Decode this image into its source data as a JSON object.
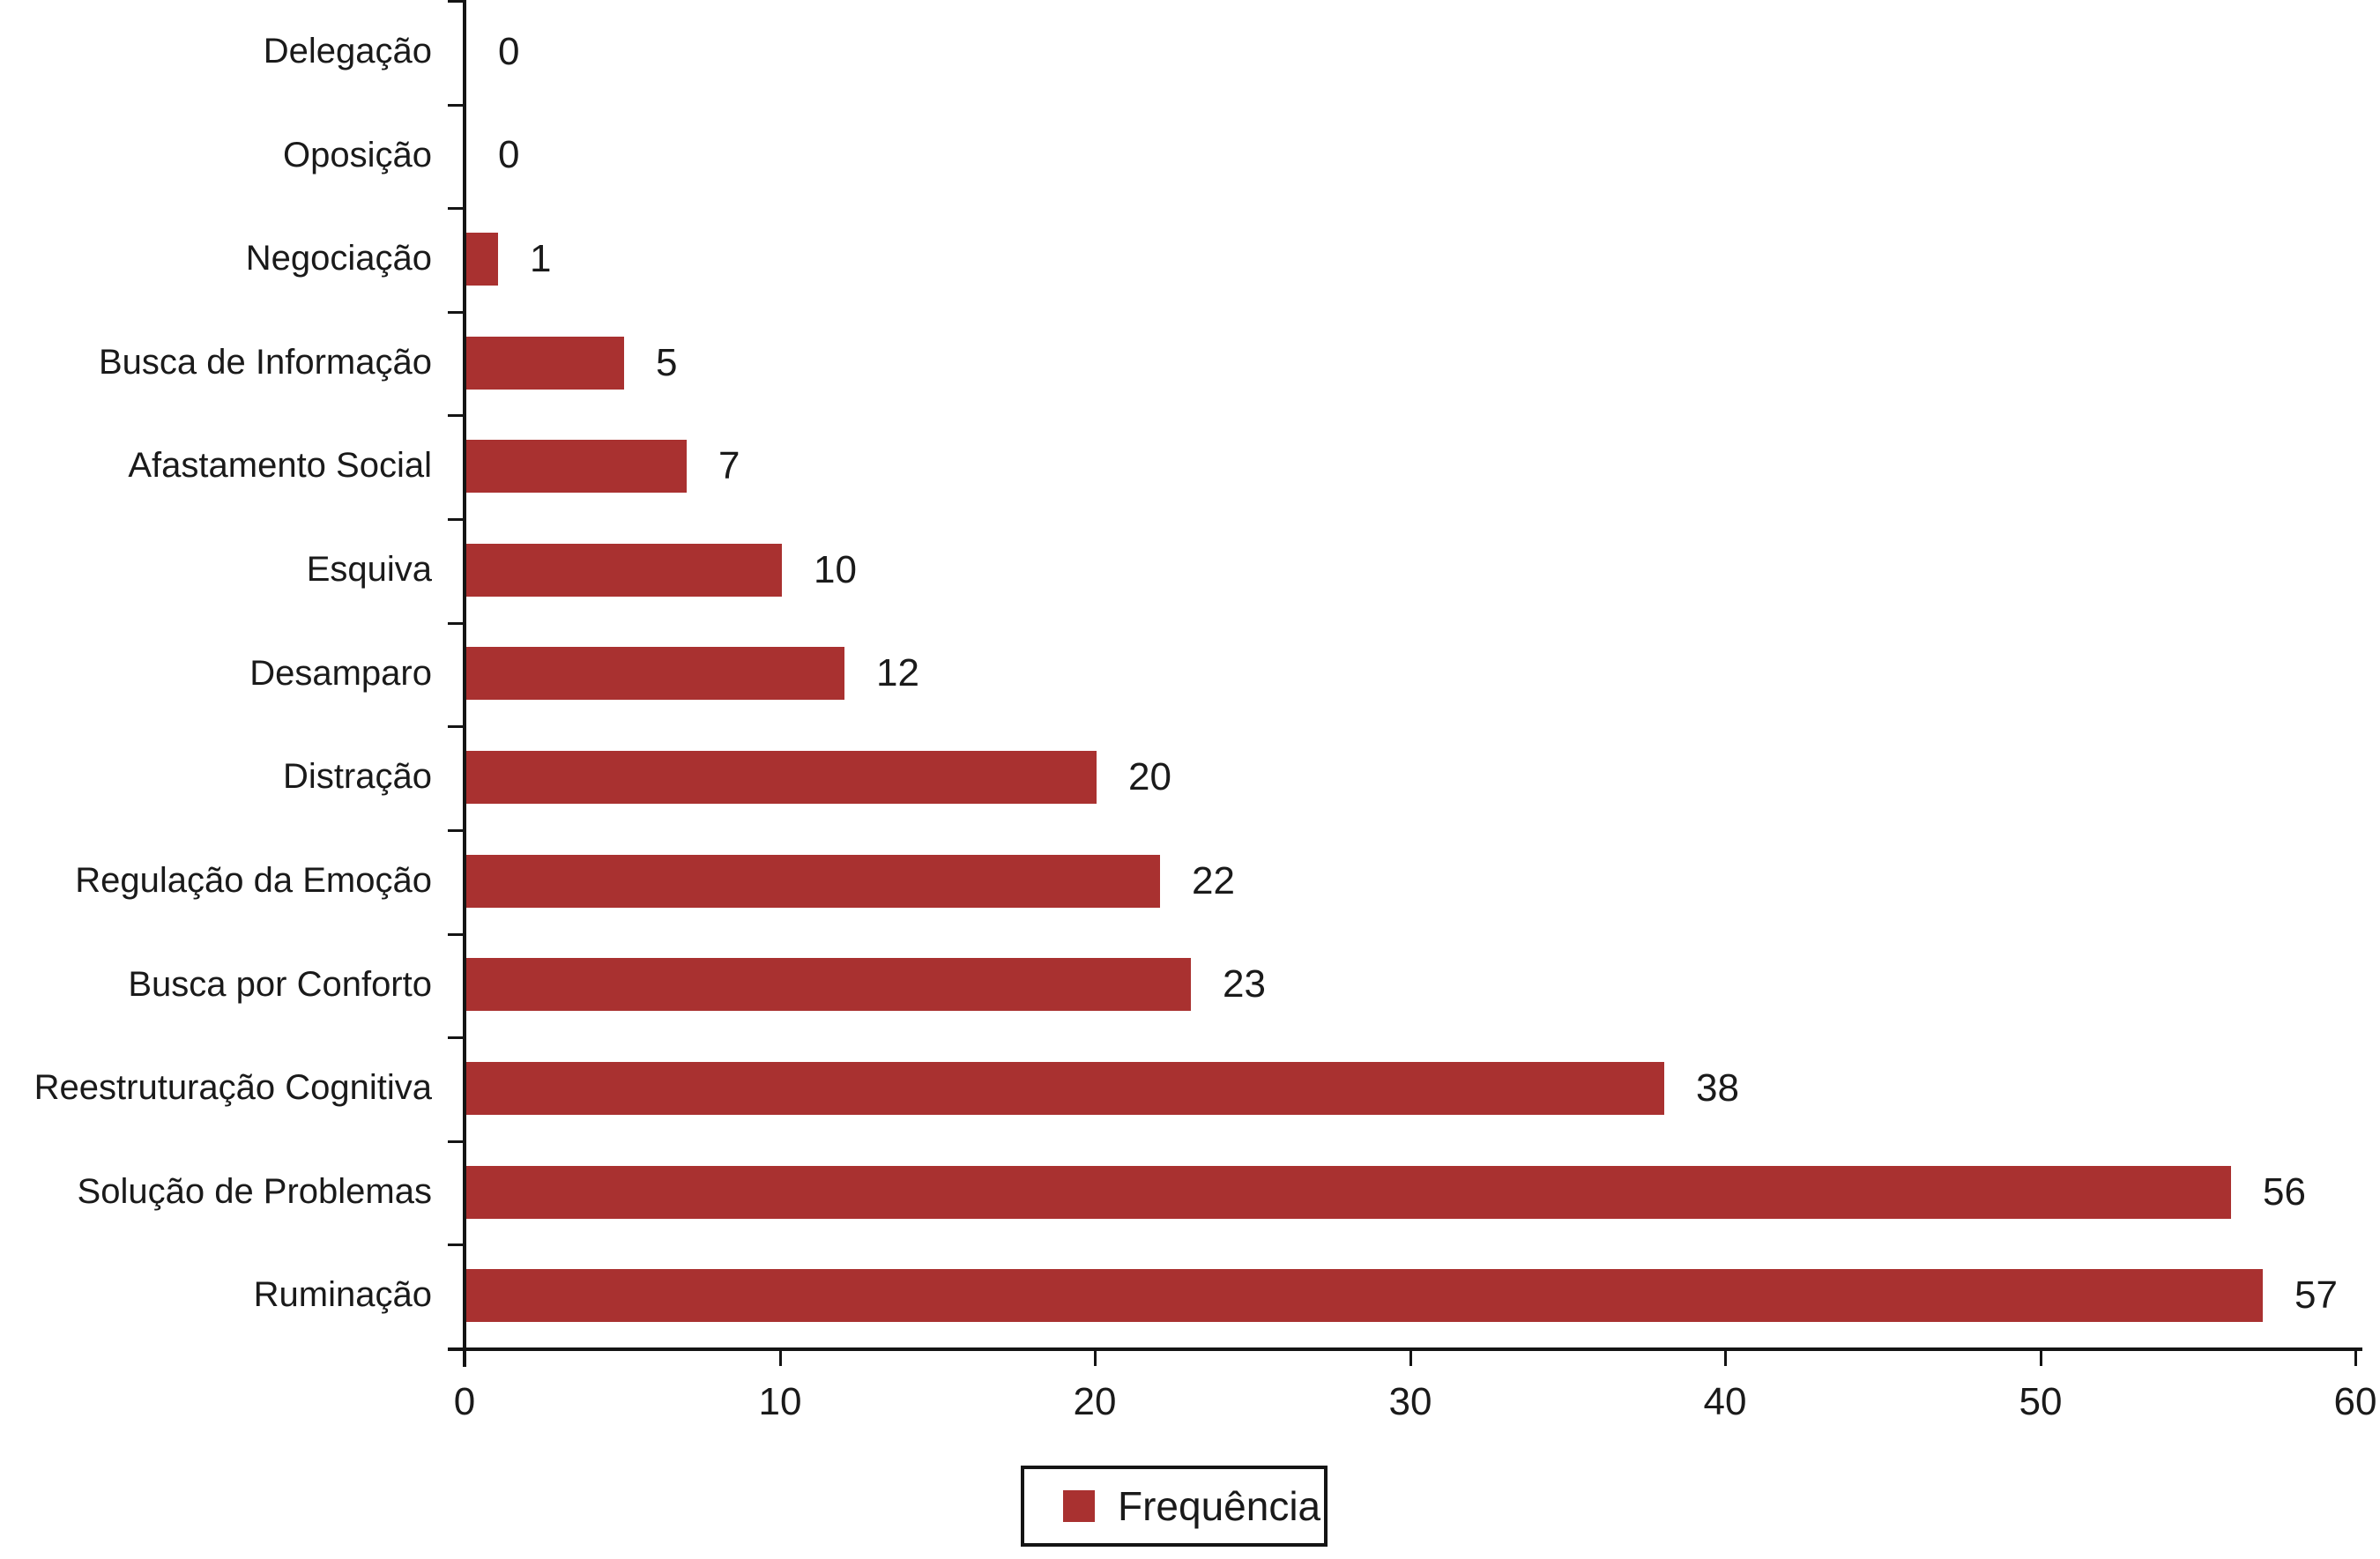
{
  "chart_data": {
    "type": "bar",
    "orientation": "horizontal",
    "title": "",
    "categories": [
      "Delegação",
      "Oposição",
      "Negociação",
      "Busca de Informação",
      "Afastamento Social",
      "Esquiva",
      "Desamparo",
      "Distração",
      "Regulação da Emoção",
      "Busca por Conforto",
      "Reestruturação Cognitiva",
      "Solução de Problemas",
      "Ruminação"
    ],
    "series": [
      {
        "name": "Frequência",
        "values": [
          0,
          0,
          1,
          5,
          7,
          10,
          12,
          20,
          22,
          23,
          38,
          56,
          57
        ]
      }
    ],
    "value_labels": [
      "0",
      "0",
      "1",
      "5",
      "7",
      "10",
      "12",
      "20",
      "22",
      "23",
      "38",
      "56",
      "57"
    ],
    "xlabel": "",
    "ylabel": "",
    "xlim": [
      0,
      60
    ],
    "xticks": [
      0,
      10,
      20,
      30,
      40,
      50,
      60
    ],
    "grid": false,
    "legend": {
      "label": "Frequência",
      "position": "bottom-center"
    },
    "colors": {
      "bar": "#a93130",
      "axis": "#141414",
      "text": "#1a1a1a",
      "background": "#ffffff",
      "legend_border": "#141414"
    }
  }
}
